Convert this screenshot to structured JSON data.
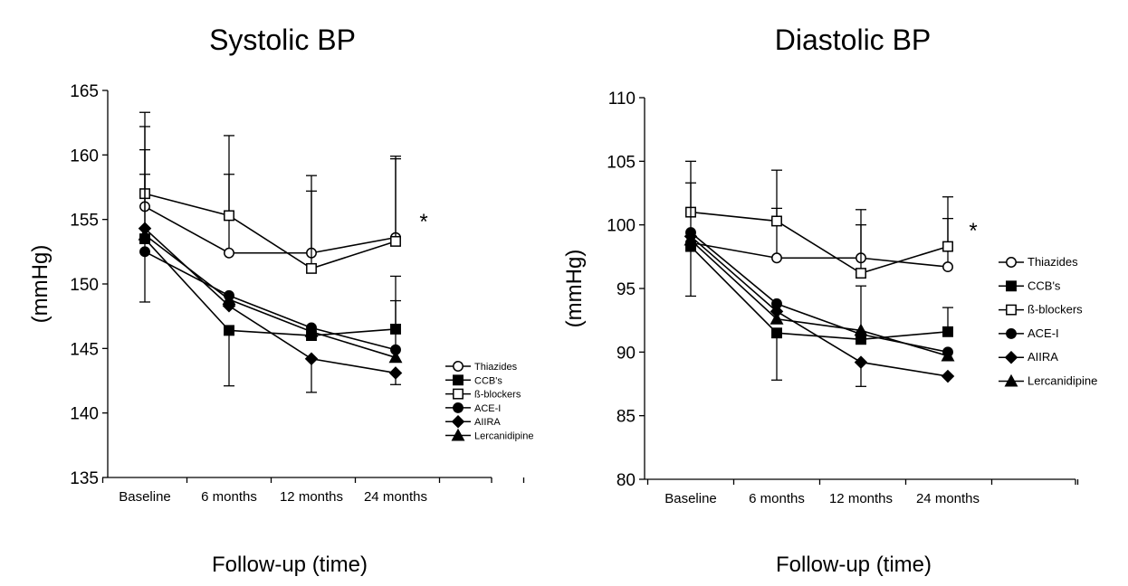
{
  "chart_data": [
    {
      "type": "line",
      "title": "Systolic BP",
      "xlabel": "Follow-up (time)",
      "ylabel": "(mmHg)",
      "categories": [
        "Baseline",
        "6 months",
        "12 months",
        "24 months"
      ],
      "ylim": [
        135,
        165
      ],
      "yticks": [
        "135",
        "140",
        "145",
        "150",
        "155",
        "160",
        "165"
      ],
      "grid": false,
      "legend_position": "right",
      "annotation": "*",
      "series": [
        {
          "name": "Thiazides",
          "marker": "circle-open",
          "values": [
            156.0,
            152.4,
            152.4,
            153.6
          ],
          "error_high": [
            162.2,
            158.5,
            157.2,
            159.9
          ],
          "error_low": [
            null,
            null,
            null,
            null
          ]
        },
        {
          "name": "CCB's",
          "marker": "square-filled",
          "values": [
            153.5,
            146.4,
            146.0,
            146.5
          ],
          "error_high": [
            null,
            null,
            null,
            150.6
          ],
          "error_low": [
            null,
            142.1,
            null,
            null
          ]
        },
        {
          "name": "ß-blockers",
          "marker": "square-open",
          "values": [
            157.0,
            155.3,
            151.2,
            153.3
          ],
          "error_high": [
            163.3,
            161.5,
            158.4,
            159.7
          ],
          "error_low": [
            null,
            null,
            null,
            null
          ]
        },
        {
          "name": "ACE-I",
          "marker": "circle-filled",
          "values": [
            152.5,
            149.1,
            146.6,
            144.9
          ],
          "error_high": [
            160.4,
            null,
            null,
            148.7
          ],
          "error_low": [
            148.6,
            null,
            null,
            null
          ]
        },
        {
          "name": "AIIRA",
          "marker": "diamond-filled",
          "values": [
            154.3,
            148.3,
            144.2,
            143.1
          ],
          "error_high": [
            null,
            null,
            null,
            null
          ],
          "error_low": [
            null,
            null,
            141.6,
            142.2
          ]
        },
        {
          "name": "Lercanidipine",
          "marker": "triangle-filled",
          "values": [
            153.8,
            148.8,
            146.3,
            144.3
          ],
          "error_high": [
            158.5,
            null,
            null,
            null
          ],
          "error_low": [
            null,
            null,
            null,
            null
          ]
        }
      ]
    },
    {
      "type": "line",
      "title": "Diastolic BP",
      "xlabel": "Follow-up (time)",
      "ylabel": "(mmHg)",
      "categories": [
        "Baseline",
        "6 months",
        "12 months",
        "24 months"
      ],
      "ylim": [
        80,
        110
      ],
      "yticks": [
        "80",
        "85",
        "90",
        "95",
        "100",
        "105",
        "110"
      ],
      "grid": false,
      "legend_position": "right",
      "annotation": "*",
      "series": [
        {
          "name": "Thiazides",
          "marker": "circle-open",
          "values": [
            98.6,
            97.4,
            97.4,
            96.7
          ],
          "error_high": [
            null,
            101.3,
            100.0,
            100.5
          ],
          "error_low": [
            null,
            null,
            null,
            null
          ]
        },
        {
          "name": "CCB's",
          "marker": "square-filled",
          "values": [
            98.3,
            91.5,
            91.0,
            91.6
          ],
          "error_high": [
            null,
            null,
            null,
            93.5
          ],
          "error_low": [
            null,
            87.8,
            null,
            null
          ]
        },
        {
          "name": "ß-blockers",
          "marker": "square-open",
          "values": [
            101.0,
            100.3,
            96.2,
            98.3
          ],
          "error_high": [
            105.0,
            104.3,
            101.2,
            102.2
          ],
          "error_low": [
            null,
            null,
            null,
            null
          ]
        },
        {
          "name": "ACE-I",
          "marker": "circle-filled",
          "values": [
            99.4,
            93.8,
            91.4,
            90.0
          ],
          "error_high": [
            103.3,
            null,
            null,
            null
          ],
          "error_low": [
            94.4,
            null,
            null,
            null
          ]
        },
        {
          "name": "AIIRA",
          "marker": "diamond-filled",
          "values": [
            99.1,
            93.2,
            89.2,
            88.1
          ],
          "error_high": [
            null,
            null,
            null,
            null
          ],
          "error_low": [
            null,
            null,
            87.3,
            null
          ]
        },
        {
          "name": "Lercanidipine",
          "marker": "triangle-filled",
          "values": [
            98.8,
            92.6,
            91.7,
            89.7
          ],
          "error_high": [
            null,
            null,
            95.2,
            null
          ],
          "error_low": [
            null,
            null,
            null,
            null
          ]
        }
      ]
    }
  ]
}
